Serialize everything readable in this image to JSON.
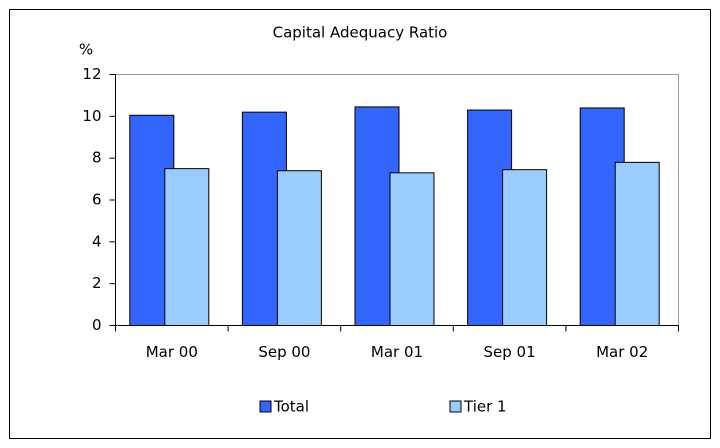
{
  "chart_data": {
    "type": "bar",
    "title": "Capital Adequacy Ratio",
    "ylabel": "%",
    "categories": [
      "Mar 00",
      "Sep 00",
      "Mar 01",
      "Sep 01",
      "Mar 02"
    ],
    "series": [
      {
        "name": "Total",
        "color": "#3366ff",
        "values": [
          10.05,
          10.2,
          10.45,
          10.3,
          10.4
        ]
      },
      {
        "name": "Tier 1",
        "color": "#99ccff",
        "values": [
          7.5,
          7.4,
          7.3,
          7.45,
          7.8
        ]
      }
    ],
    "ylim": [
      0,
      12
    ],
    "yticks": [
      0,
      2,
      4,
      6,
      8,
      10,
      12
    ],
    "grid": false,
    "legend": "bottom"
  }
}
